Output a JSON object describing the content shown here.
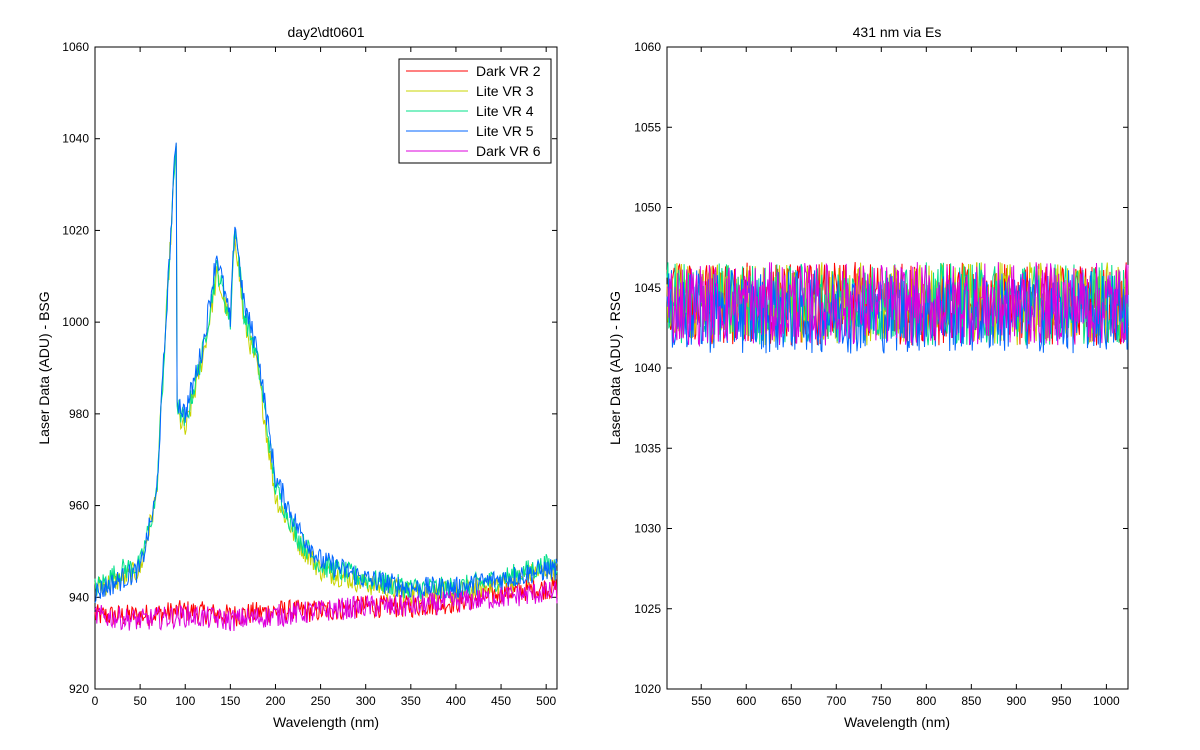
{
  "chart_data": [
    {
      "type": "line",
      "title": "day2\\dt0601",
      "xlabel": "Wavelength (nm)",
      "ylabel": "Laser Data (ADU) - BSG",
      "xlim": [
        0,
        512
      ],
      "ylim": [
        920,
        1060
      ],
      "xticks": [
        0,
        50,
        100,
        150,
        200,
        250,
        300,
        350,
        400,
        450,
        500
      ],
      "yticks": [
        920,
        940,
        960,
        980,
        1000,
        1020,
        1040,
        1060
      ],
      "grid": false,
      "legend_position": "top-right",
      "series": [
        {
          "name": "Dark VR 2",
          "color": "#ff0000",
          "x": [
            0,
            50,
            100,
            150,
            200,
            250,
            300,
            350,
            400,
            450,
            500,
            512
          ],
          "y": [
            936,
            936,
            937,
            936,
            937,
            937,
            938,
            938,
            939,
            941,
            942,
            942
          ]
        },
        {
          "name": "Lite VR 3",
          "color": "#c8d400",
          "x": [
            0,
            30,
            50,
            68,
            90,
            91,
            100,
            120,
            135,
            150,
            155,
            165,
            180,
            200,
            225,
            250,
            300,
            350,
            400,
            450,
            500,
            512
          ],
          "y": [
            942,
            944,
            946,
            962,
            1040,
            980,
            976,
            993,
            1010,
            1000,
            1020,
            1000,
            990,
            962,
            952,
            946,
            943,
            941,
            941,
            943,
            946,
            946
          ]
        },
        {
          "name": "Lite VR 4",
          "color": "#00e08a",
          "x": [
            0,
            30,
            50,
            68,
            90,
            91,
            100,
            120,
            135,
            150,
            155,
            165,
            180,
            200,
            225,
            250,
            300,
            350,
            400,
            450,
            500,
            512
          ],
          "y": [
            942,
            946,
            947,
            962,
            1040,
            982,
            978,
            994,
            1012,
            1000,
            1022,
            1002,
            992,
            964,
            953,
            947,
            944,
            942,
            942,
            944,
            947,
            947
          ]
        },
        {
          "name": "Lite VR 5",
          "color": "#0066ff",
          "x": [
            0,
            30,
            50,
            68,
            90,
            91,
            100,
            120,
            135,
            150,
            155,
            165,
            180,
            200,
            225,
            250,
            300,
            350,
            400,
            450,
            500,
            512
          ],
          "y": [
            941,
            944,
            946,
            962,
            1041,
            983,
            980,
            995,
            1015,
            1000,
            1022,
            1004,
            994,
            966,
            955,
            948,
            944,
            942,
            942,
            944,
            946,
            946
          ]
        },
        {
          "name": "Dark VR 6",
          "color": "#dd00dd",
          "x": [
            0,
            50,
            100,
            150,
            200,
            250,
            300,
            350,
            400,
            450,
            500,
            512
          ],
          "y": [
            936,
            935,
            936,
            935,
            936,
            937,
            938,
            938,
            939,
            940,
            941,
            941
          ]
        }
      ]
    },
    {
      "type": "line",
      "title": "431 nm via Es",
      "xlabel": "Wavelength (nm)",
      "ylabel": "Laser Data (ADU) - RSG",
      "xlim": [
        512,
        1024
      ],
      "ylim": [
        1020,
        1060
      ],
      "xticks": [
        550,
        600,
        650,
        700,
        750,
        800,
        850,
        900,
        950,
        1000
      ],
      "yticks": [
        1020,
        1025,
        1030,
        1035,
        1040,
        1045,
        1050,
        1055,
        1060
      ],
      "grid": false,
      "series": [
        {
          "color": "#ff0000",
          "x": [
            512,
            1024
          ],
          "y": [
            1044,
            1044
          ]
        },
        {
          "color": "#c8d400",
          "x": [
            512,
            1024
          ],
          "y": [
            1044,
            1044
          ]
        },
        {
          "color": "#00e08a",
          "x": [
            512,
            1024
          ],
          "y": [
            1044,
            1044
          ]
        },
        {
          "color": "#0066ff",
          "x": [
            512,
            1024
          ],
          "y": [
            1043.5,
            1043.5
          ]
        },
        {
          "color": "#dd00dd",
          "x": [
            512,
            1024
          ],
          "y": [
            1044,
            1044
          ]
        }
      ]
    }
  ]
}
